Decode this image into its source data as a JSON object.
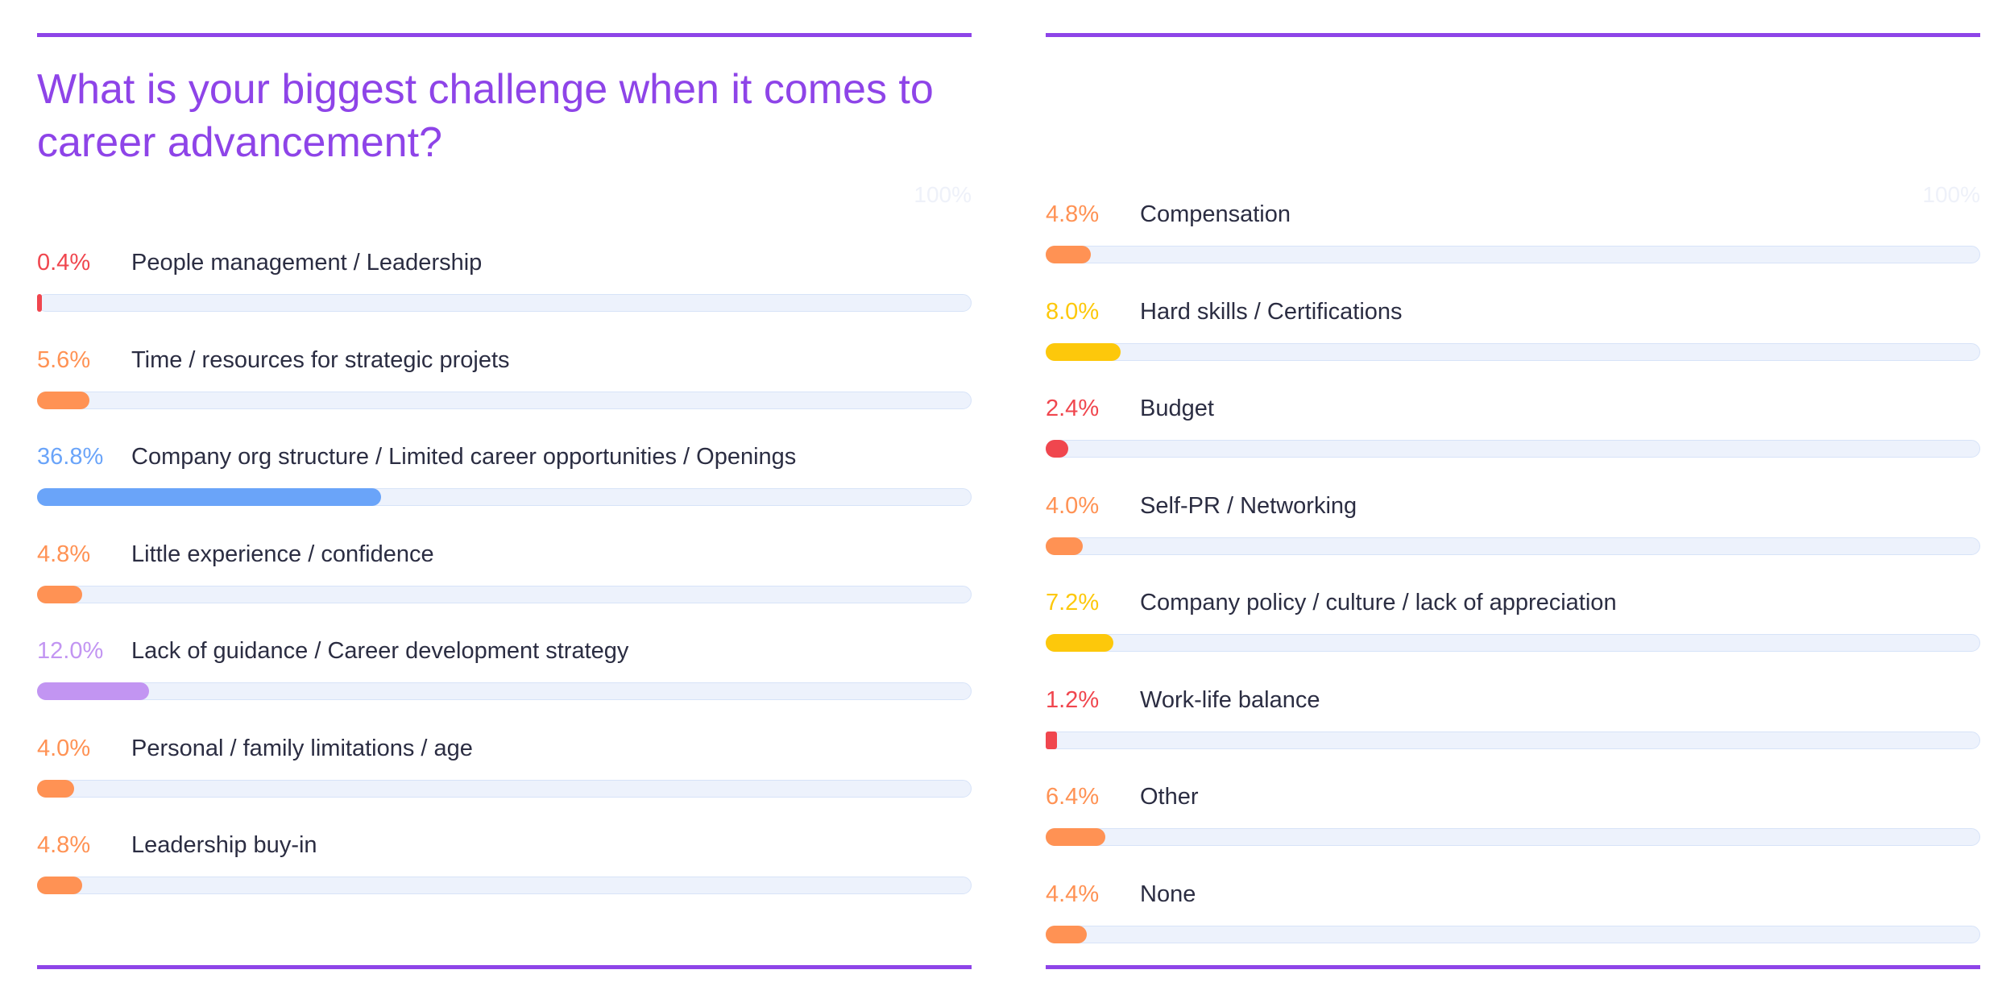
{
  "title": "What is your biggest challenge when it comes to career advancement?",
  "max_label": "100%",
  "colors": {
    "accent": "#8e44e8",
    "red": "#f0464e",
    "orange": "#ff9254",
    "blue": "#6aa4f9",
    "purple": "#c295f2",
    "yellow": "#fdc80b",
    "track": "#edf2fc"
  },
  "chart_data": [
    {
      "type": "bar",
      "orientation": "horizontal",
      "title": "What is your biggest challenge when it comes to career advancement?",
      "xlim": [
        0,
        100
      ],
      "max_label": "100%",
      "categories": [
        "People management / Leadership",
        "Time / resources for strategic projets",
        "Company org structure / Limited career opportunities / Openings",
        "Little experience / confidence",
        "Lack of guidance / Career development strategy",
        "Personal / family limitations / age",
        "Leadership buy-in"
      ],
      "values": [
        0.4,
        5.6,
        36.8,
        4.8,
        12.0,
        4.0,
        4.8
      ],
      "value_labels": [
        "0.4%",
        "5.6%",
        "36.8%",
        "4.8%",
        "12.0%",
        "4.0%",
        "4.8%"
      ],
      "colors": [
        "#f0464e",
        "#ff9254",
        "#6aa4f9",
        "#ff9254",
        "#c295f2",
        "#ff9254",
        "#ff9254"
      ]
    },
    {
      "type": "bar",
      "orientation": "horizontal",
      "xlim": [
        0,
        100
      ],
      "max_label": "100%",
      "categories": [
        "Compensation",
        "Hard skills / Certifications",
        "Budget",
        "Self-PR / Networking",
        "Company policy / culture / lack of appreciation",
        "Work-life balance",
        "Other",
        "None"
      ],
      "values": [
        4.8,
        8.0,
        2.4,
        4.0,
        7.2,
        1.2,
        6.4,
        4.4
      ],
      "value_labels": [
        "4.8%",
        "8.0%",
        "2.4%",
        "4.0%",
        "7.2%",
        "1.2%",
        "6.4%",
        "4.4%"
      ],
      "colors": [
        "#ff9254",
        "#fdc80b",
        "#f0464e",
        "#ff9254",
        "#fdc80b",
        "#f0464e",
        "#ff9254",
        "#ff9254"
      ]
    }
  ]
}
